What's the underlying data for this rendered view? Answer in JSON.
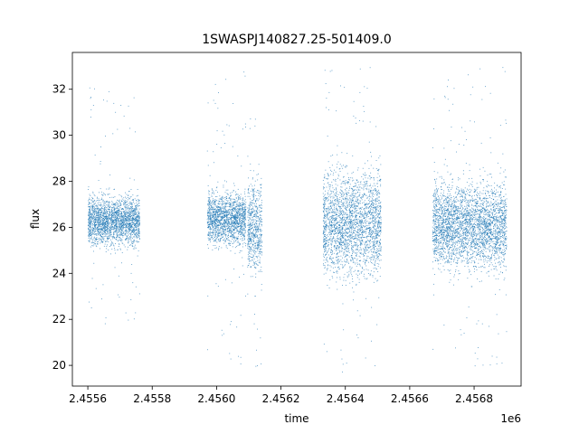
{
  "chart_data": {
    "type": "scatter",
    "title": "1SWASPJ140827.25-501409.0",
    "xlabel": "time",
    "ylabel": "flux",
    "x_offset_label": "1e6",
    "xlim": [
      2455552,
      2456946
    ],
    "ylim": [
      19.1,
      33.6
    ],
    "grid": false,
    "legend": "none",
    "marker_color": "#1f77b4",
    "x_ticks": [
      2455600,
      2455800,
      2456000,
      2456200,
      2456400,
      2456600,
      2456800
    ],
    "x_tick_labels": [
      "2.4556",
      "2.4558",
      "2.4560",
      "2.4562",
      "2.4564",
      "2.4566",
      "2.4568"
    ],
    "y_ticks": [
      20,
      22,
      24,
      26,
      28,
      30,
      32
    ],
    "y_tick_labels": [
      "20",
      "22",
      "24",
      "26",
      "28",
      "30",
      "32"
    ],
    "segments": [
      {
        "x_range": [
          2455600,
          2455760
        ],
        "y_center": 26.3,
        "y_spread": 1.6,
        "y_min": 21.8,
        "y_max": 32.2
      },
      {
        "x_range": [
          2455970,
          2456090
        ],
        "y_center": 26.4,
        "y_spread": 1.7,
        "y_min": 19.8,
        "y_max": 32.8
      },
      {
        "x_range": [
          2456095,
          2456140
        ],
        "y_center": 26.0,
        "y_spread": 3.0,
        "y_min": 19.8,
        "y_max": 31.5
      },
      {
        "x_range": [
          2456330,
          2456510
        ],
        "y_center": 26.2,
        "y_spread": 3.4,
        "y_min": 19.7,
        "y_max": 33.0
      },
      {
        "x_range": [
          2456670,
          2456900
        ],
        "y_center": 26.1,
        "y_spread": 2.8,
        "y_min": 19.8,
        "y_max": 33.0
      }
    ]
  }
}
